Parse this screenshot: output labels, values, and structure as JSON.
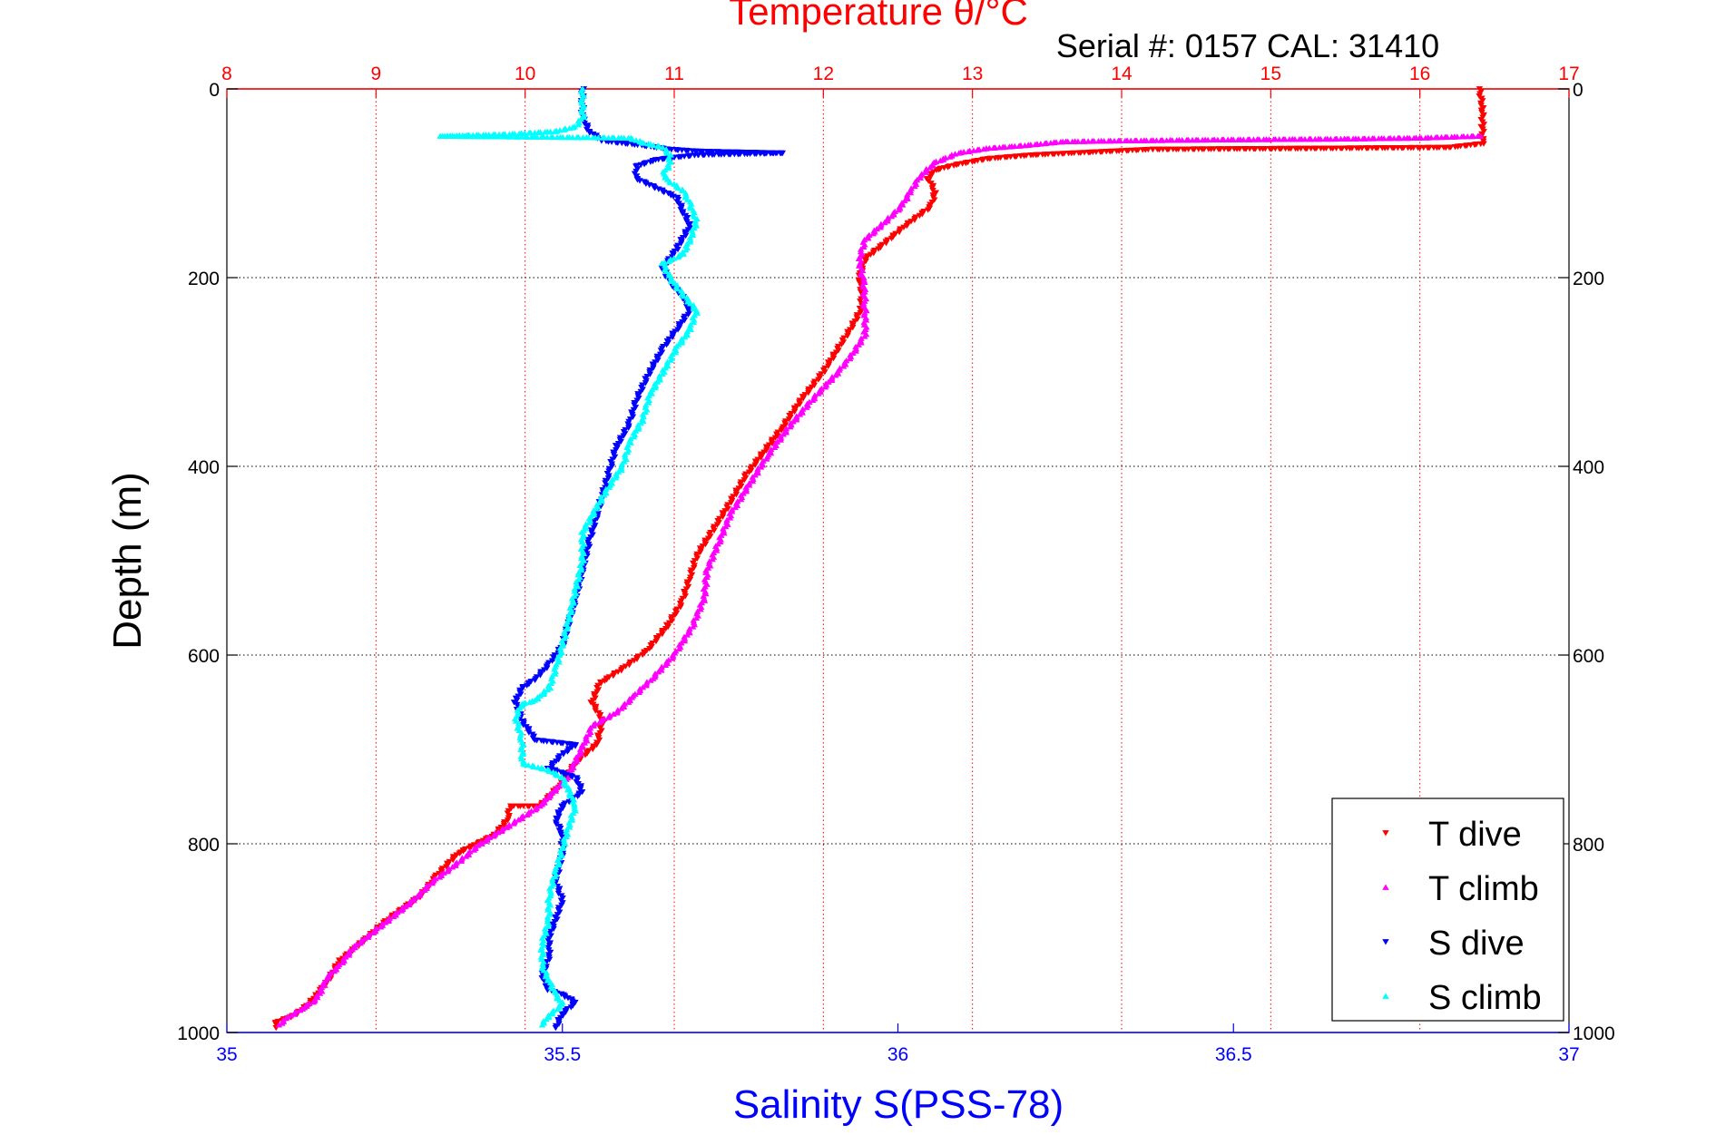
{
  "chart_data": {
    "type": "scatter",
    "title": "Temperature θ/°C",
    "subtitle": "Serial #: 0157  CAL: 31410",
    "xlabel": "Salinity S(PSS-78)",
    "x2label": "Temperature θ/°C",
    "ylabel": "Depth (m)",
    "xlim": [
      35,
      37
    ],
    "x2lim": [
      8,
      17
    ],
    "ylim": [
      0,
      1000
    ],
    "y_reversed": true,
    "grid": true,
    "legend_position": "bottom-right",
    "colors": {
      "t_axis": "#ff0000",
      "s_axis": "#0000ff",
      "axes": "#000000"
    },
    "xticks": [
      "35",
      "35.5",
      "36",
      "36.5",
      "37"
    ],
    "x2ticks": [
      "8",
      "9",
      "10",
      "11",
      "12",
      "13",
      "14",
      "15",
      "16",
      "17"
    ],
    "yticks": [
      "0",
      "200",
      "400",
      "600",
      "800",
      "1000"
    ],
    "series": [
      {
        "name": "T dive",
        "axis": "temperature",
        "color": "#ff0000",
        "marker": "down-triangle",
        "points": [
          [
            16.4,
            0
          ],
          [
            16.42,
            20
          ],
          [
            16.42,
            40
          ],
          [
            16.42,
            58
          ],
          [
            16.2,
            62
          ],
          [
            15.3,
            63
          ],
          [
            14.2,
            64
          ],
          [
            13.8,
            67
          ],
          [
            13.4,
            70
          ],
          [
            13.1,
            74
          ],
          [
            12.9,
            80
          ],
          [
            12.75,
            86
          ],
          [
            12.7,
            95
          ],
          [
            12.72,
            100
          ],
          [
            12.75,
            110
          ],
          [
            12.72,
            125
          ],
          [
            12.55,
            145
          ],
          [
            12.4,
            165
          ],
          [
            12.28,
            180
          ],
          [
            12.24,
            200
          ],
          [
            12.26,
            215
          ],
          [
            12.25,
            235
          ],
          [
            12.18,
            255
          ],
          [
            12.1,
            275
          ],
          [
            12.0,
            300
          ],
          [
            11.85,
            330
          ],
          [
            11.72,
            360
          ],
          [
            11.6,
            385
          ],
          [
            11.48,
            410
          ],
          [
            11.35,
            445
          ],
          [
            11.25,
            470
          ],
          [
            11.15,
            495
          ],
          [
            11.1,
            520
          ],
          [
            11.05,
            545
          ],
          [
            10.95,
            570
          ],
          [
            10.82,
            595
          ],
          [
            10.65,
            615
          ],
          [
            10.5,
            630
          ],
          [
            10.45,
            650
          ],
          [
            10.52,
            670
          ],
          [
            10.48,
            695
          ],
          [
            10.35,
            712
          ],
          [
            10.22,
            740
          ],
          [
            10.1,
            760
          ],
          [
            9.9,
            760
          ],
          [
            9.88,
            775
          ],
          [
            9.8,
            790
          ],
          [
            9.55,
            810
          ],
          [
            9.4,
            835
          ],
          [
            9.3,
            855
          ],
          [
            9.08,
            880
          ],
          [
            8.9,
            905
          ],
          [
            8.75,
            925
          ],
          [
            8.68,
            945
          ],
          [
            8.6,
            960
          ],
          [
            8.55,
            970
          ],
          [
            8.45,
            982
          ],
          [
            8.32,
            990
          ],
          [
            8.33,
            995
          ]
        ]
      },
      {
        "name": "T climb",
        "axis": "temperature",
        "color": "#ff00ff",
        "marker": "up-triangle",
        "points": [
          [
            16.4,
            50
          ],
          [
            16.0,
            52
          ],
          [
            15.5,
            53
          ],
          [
            14.6,
            54
          ],
          [
            14.0,
            55
          ],
          [
            13.6,
            56
          ],
          [
            13.35,
            60
          ],
          [
            13.1,
            63
          ],
          [
            12.9,
            68
          ],
          [
            12.75,
            78
          ],
          [
            12.65,
            92
          ],
          [
            12.58,
            110
          ],
          [
            12.52,
            125
          ],
          [
            12.42,
            140
          ],
          [
            12.28,
            160
          ],
          [
            12.24,
            180
          ],
          [
            12.27,
            205
          ],
          [
            12.28,
            230
          ],
          [
            12.28,
            260
          ],
          [
            12.2,
            280
          ],
          [
            12.1,
            300
          ],
          [
            11.92,
            330
          ],
          [
            11.76,
            360
          ],
          [
            11.62,
            390
          ],
          [
            11.5,
            420
          ],
          [
            11.38,
            450
          ],
          [
            11.3,
            480
          ],
          [
            11.22,
            510
          ],
          [
            11.2,
            540
          ],
          [
            11.12,
            570
          ],
          [
            11.0,
            600
          ],
          [
            10.85,
            625
          ],
          [
            10.72,
            645
          ],
          [
            10.62,
            660
          ],
          [
            10.45,
            675
          ],
          [
            10.38,
            700
          ],
          [
            10.28,
            730
          ],
          [
            10.1,
            760
          ],
          [
            9.9,
            780
          ],
          [
            9.7,
            800
          ],
          [
            9.55,
            820
          ],
          [
            9.38,
            840
          ],
          [
            9.25,
            860
          ],
          [
            9.05,
            885
          ],
          [
            8.85,
            910
          ],
          [
            8.75,
            930
          ],
          [
            8.68,
            940
          ],
          [
            8.65,
            950
          ],
          [
            8.6,
            965
          ],
          [
            8.5,
            975
          ],
          [
            8.4,
            985
          ],
          [
            8.35,
            992
          ]
        ]
      },
      {
        "name": "S dive",
        "axis": "salinity",
        "color": "#0000ff",
        "marker": "down-triangle",
        "points": [
          [
            35.53,
            0
          ],
          [
            35.53,
            15
          ],
          [
            35.53,
            30
          ],
          [
            35.54,
            45
          ],
          [
            35.56,
            55
          ],
          [
            35.62,
            60
          ],
          [
            35.66,
            64
          ],
          [
            35.7,
            66
          ],
          [
            35.76,
            67
          ],
          [
            35.83,
            68
          ],
          [
            35.7,
            70
          ],
          [
            35.64,
            75
          ],
          [
            35.61,
            82
          ],
          [
            35.61,
            95
          ],
          [
            35.64,
            105
          ],
          [
            35.67,
            115
          ],
          [
            35.68,
            130
          ],
          [
            35.69,
            145
          ],
          [
            35.67,
            170
          ],
          [
            35.65,
            190
          ],
          [
            35.66,
            205
          ],
          [
            35.68,
            220
          ],
          [
            35.69,
            235
          ],
          [
            35.67,
            255
          ],
          [
            35.65,
            275
          ],
          [
            35.63,
            300
          ],
          [
            35.61,
            330
          ],
          [
            35.6,
            355
          ],
          [
            35.58,
            380
          ],
          [
            35.57,
            405
          ],
          [
            35.56,
            430
          ],
          [
            35.55,
            455
          ],
          [
            35.54,
            480
          ],
          [
            35.53,
            510
          ],
          [
            35.52,
            540
          ],
          [
            35.51,
            565
          ],
          [
            35.5,
            590
          ],
          [
            35.48,
            610
          ],
          [
            35.46,
            625
          ],
          [
            35.44,
            635
          ],
          [
            35.43,
            650
          ],
          [
            35.44,
            670
          ],
          [
            35.46,
            690
          ],
          [
            35.52,
            695
          ],
          [
            35.5,
            705
          ],
          [
            35.48,
            720
          ],
          [
            35.52,
            730
          ],
          [
            35.53,
            745
          ],
          [
            35.5,
            760
          ],
          [
            35.49,
            775
          ],
          [
            35.5,
            790
          ],
          [
            35.5,
            810
          ],
          [
            35.49,
            840
          ],
          [
            35.5,
            860
          ],
          [
            35.49,
            880
          ],
          [
            35.48,
            900
          ],
          [
            35.48,
            920
          ],
          [
            35.47,
            940
          ],
          [
            35.48,
            955
          ],
          [
            35.5,
            960
          ],
          [
            35.52,
            968
          ],
          [
            35.5,
            980
          ],
          [
            35.49,
            995
          ]
        ]
      },
      {
        "name": "S climb",
        "axis": "salinity",
        "color": "#00ffff",
        "marker": "up-triangle",
        "points": [
          [
            35.53,
            0
          ],
          [
            35.53,
            15
          ],
          [
            35.53,
            30
          ],
          [
            35.52,
            40
          ],
          [
            35.49,
            45
          ],
          [
            35.42,
            48
          ],
          [
            35.32,
            50
          ],
          [
            35.6,
            52
          ],
          [
            35.62,
            57
          ],
          [
            35.65,
            62
          ],
          [
            35.66,
            70
          ],
          [
            35.66,
            80
          ],
          [
            35.65,
            90
          ],
          [
            35.66,
            98
          ],
          [
            35.68,
            108
          ],
          [
            35.69,
            122
          ],
          [
            35.7,
            140
          ],
          [
            35.69,
            160
          ],
          [
            35.68,
            175
          ],
          [
            35.65,
            185
          ],
          [
            35.66,
            200
          ],
          [
            35.68,
            218
          ],
          [
            35.7,
            235
          ],
          [
            35.69,
            255
          ],
          [
            35.67,
            275
          ],
          [
            35.65,
            300
          ],
          [
            35.63,
            325
          ],
          [
            35.62,
            350
          ],
          [
            35.6,
            375
          ],
          [
            35.59,
            400
          ],
          [
            35.57,
            420
          ],
          [
            35.55,
            445
          ],
          [
            35.53,
            470
          ],
          [
            35.53,
            500
          ],
          [
            35.52,
            530
          ],
          [
            35.51,
            560
          ],
          [
            35.5,
            590
          ],
          [
            35.49,
            615
          ],
          [
            35.48,
            635
          ],
          [
            35.46,
            648
          ],
          [
            35.44,
            652
          ],
          [
            35.43,
            665
          ],
          [
            35.44,
            690
          ],
          [
            35.44,
            715
          ],
          [
            35.48,
            722
          ],
          [
            35.5,
            730
          ],
          [
            35.51,
            745
          ],
          [
            35.52,
            760
          ],
          [
            35.51,
            780
          ],
          [
            35.5,
            805
          ],
          [
            35.49,
            830
          ],
          [
            35.48,
            855
          ],
          [
            35.48,
            880
          ],
          [
            35.47,
            905
          ],
          [
            35.47,
            930
          ],
          [
            35.48,
            945
          ],
          [
            35.49,
            960
          ],
          [
            35.5,
            970
          ],
          [
            35.48,
            982
          ],
          [
            35.47,
            992
          ]
        ]
      }
    ]
  }
}
